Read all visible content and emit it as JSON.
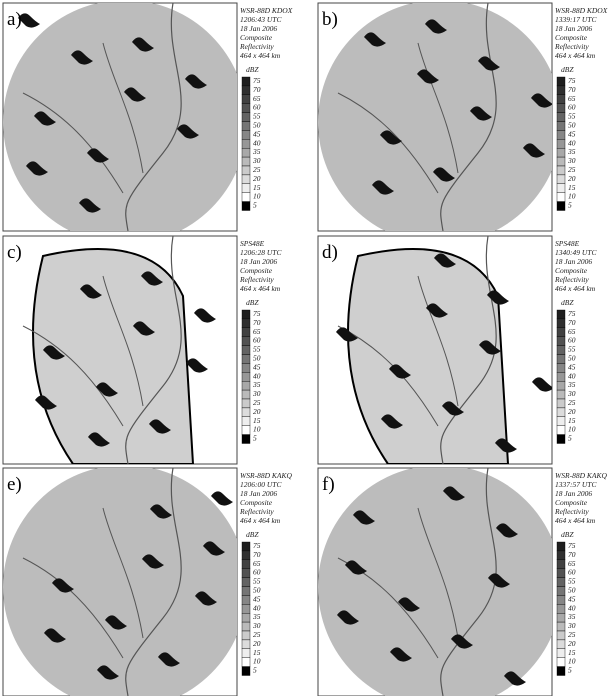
{
  "panels": [
    {
      "label": "a)",
      "radar": "WSR-88D KDOX",
      "time": "1206:43 UTC",
      "date": "18 Jan 2006",
      "product": [
        "Composite",
        "Reflectivity"
      ],
      "size": "464 x 464 km",
      "unit": "dBZ",
      "scale": [
        75,
        70,
        65,
        60,
        55,
        50,
        45,
        40,
        35,
        30,
        25,
        20,
        15,
        10,
        5
      ]
    },
    {
      "label": "b)",
      "radar": "WSR-88D KDOX",
      "time": "1339:17 UTC",
      "date": "18 Jan 2006",
      "product": [
        "Composite",
        "Reflectivity"
      ],
      "size": "464 x 464 km",
      "unit": "dBZ",
      "scale": [
        75,
        70,
        65,
        60,
        55,
        50,
        45,
        40,
        35,
        30,
        25,
        20,
        15,
        10,
        5
      ]
    },
    {
      "label": "c)",
      "radar": "SPS48E",
      "time": "1206:28 UTC",
      "date": "18 Jan 2006",
      "product": [
        "Composite",
        "Reflectivity"
      ],
      "size": "464 x 464 km",
      "unit": "dBZ",
      "scale": [
        75,
        70,
        65,
        60,
        55,
        50,
        45,
        40,
        35,
        30,
        25,
        20,
        15,
        10,
        5
      ]
    },
    {
      "label": "d)",
      "radar": "SPS48E",
      "time": "1340:49 UTC",
      "date": "18 Jan 2006",
      "product": [
        "Composite",
        "Reflectivity"
      ],
      "size": "464 x 464 km",
      "unit": "dBZ",
      "scale": [
        75,
        70,
        65,
        60,
        55,
        50,
        45,
        40,
        35,
        30,
        25,
        20,
        15,
        10,
        5
      ]
    },
    {
      "label": "e)",
      "radar": "WSR-88D KAKQ",
      "time": "1206:00 UTC",
      "date": "18 Jan 2006",
      "product": [
        "Composite",
        "Reflectivity"
      ],
      "size": "464 x 464 km",
      "unit": "dBZ",
      "scale": [
        75,
        70,
        65,
        60,
        55,
        50,
        45,
        40,
        35,
        30,
        25,
        20,
        15,
        10,
        5
      ]
    },
    {
      "label": "f)",
      "radar": "WSR-88D KAKQ",
      "time": "1337:57 UTC",
      "date": "18 Jan 2006",
      "product": [
        "Composite",
        "Reflectivity"
      ],
      "size": "464 x 464 km",
      "unit": "dBZ",
      "scale": [
        75,
        70,
        65,
        60,
        55,
        50,
        45,
        40,
        35,
        30,
        25,
        20,
        15,
        10,
        5
      ]
    }
  ]
}
